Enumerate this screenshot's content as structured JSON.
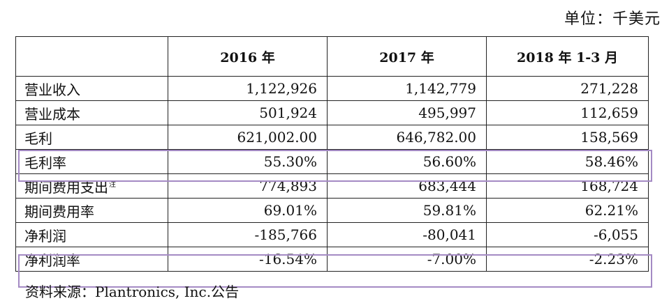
{
  "unit_label": "单位：千美元",
  "table": {
    "headers": [
      "",
      "2016 年",
      "2017 年",
      "2018 年 1-3 月"
    ],
    "rows": [
      {
        "label": "营业收入",
        "note": "",
        "values": [
          "1,122,926",
          "1,142,779",
          "271,228"
        ]
      },
      {
        "label": "营业成本",
        "note": "",
        "values": [
          "501,924",
          "495,997",
          "112,659"
        ]
      },
      {
        "label": "毛利",
        "note": "",
        "values": [
          "621,002.00",
          "646,782.00",
          "158,569"
        ]
      },
      {
        "label": "毛利率",
        "note": "",
        "values": [
          "55.30%",
          "56.60%",
          "58.46%"
        ]
      },
      {
        "label": "期间费用支出",
        "note": "注",
        "values": [
          "774,893",
          "683,444",
          "168,724"
        ]
      },
      {
        "label": "期间费用率",
        "note": "",
        "values": [
          "69.01%",
          "59.81%",
          "62.21%"
        ]
      },
      {
        "label": "净利润",
        "note": "",
        "values": [
          "-185,766",
          "-80,041",
          "-6,055"
        ]
      },
      {
        "label": "净利润率",
        "note": "",
        "values": [
          "-16.54%",
          "-7.00%",
          "-2.23%"
        ]
      }
    ]
  },
  "highlight_color": "#a48ac4",
  "source_text": "资料来源：Plantronics, Inc.公告"
}
